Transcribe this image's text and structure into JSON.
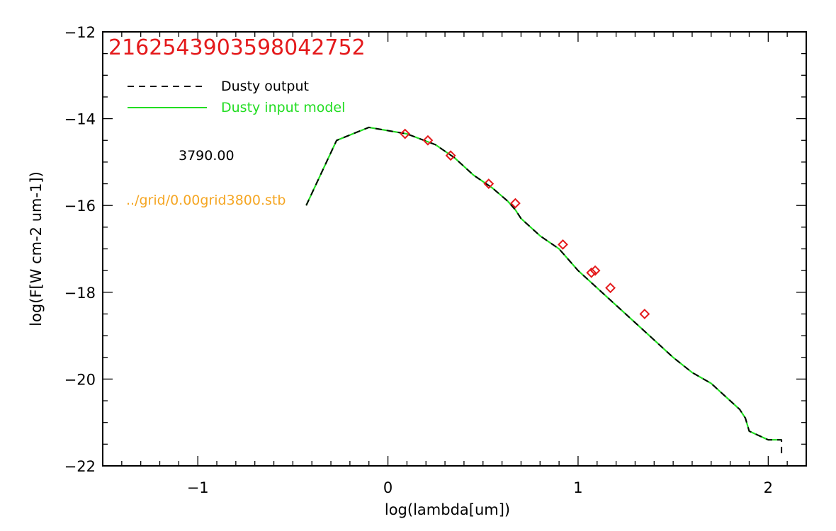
{
  "chart_data": {
    "type": "line",
    "title": "2162543903598042752",
    "title_color": "#e41a1c",
    "xlabel": "log(lambda[um])",
    "ylabel": "log(F[W cm-2 um-1])",
    "xlim": [
      -1.5,
      2.2
    ],
    "ylim": [
      -22,
      -12
    ],
    "xticks": [
      -1,
      0,
      1,
      2
    ],
    "xtick_labels": [
      "−1",
      "0",
      "1",
      "2"
    ],
    "yticks": [
      -12,
      -14,
      -16,
      -18,
      -20,
      -22
    ],
    "ytick_labels": [
      "−12",
      "−14",
      "−16",
      "−18",
      "−20",
      "−22"
    ],
    "annotations": [
      {
        "text": "3790.00",
        "color": "#000000"
      },
      {
        "text": "../grid/0.00grid3800.stb",
        "color": "#f5a623"
      }
    ],
    "legend": {
      "placement": "top-left",
      "entries": [
        {
          "label": "Dusty output",
          "color": "#000000",
          "style": "dashed"
        },
        {
          "label": "Dusty input model",
          "color": "#22dd22",
          "style": "solid"
        }
      ]
    },
    "series": [
      {
        "name": "Dusty input model",
        "color": "#22dd22",
        "style": "solid",
        "x": [
          -0.43,
          -0.27,
          -0.1,
          0.1,
          0.25,
          0.35,
          0.45,
          0.55,
          0.63,
          0.67,
          0.7,
          0.8,
          0.9,
          1.0,
          1.1,
          1.2,
          1.3,
          1.4,
          1.5,
          1.6,
          1.7,
          1.75,
          1.8,
          1.85,
          1.88,
          1.9,
          1.95,
          2.0,
          2.07
        ],
        "y": [
          -16.0,
          -14.5,
          -14.2,
          -14.35,
          -14.6,
          -14.9,
          -15.3,
          -15.6,
          -15.9,
          -16.1,
          -16.3,
          -16.7,
          -17.0,
          -17.5,
          -17.9,
          -18.3,
          -18.7,
          -19.1,
          -19.5,
          -19.85,
          -20.1,
          -20.3,
          -20.5,
          -20.7,
          -20.9,
          -21.2,
          -21.3,
          -21.4,
          -21.4
        ]
      },
      {
        "name": "Dusty output",
        "color": "#000000",
        "style": "dashed",
        "x": [
          -0.43,
          -0.27,
          -0.1,
          0.1,
          0.25,
          0.35,
          0.45,
          0.55,
          0.63,
          0.67,
          0.7,
          0.8,
          0.9,
          1.0,
          1.1,
          1.2,
          1.3,
          1.4,
          1.5,
          1.6,
          1.7,
          1.75,
          1.8,
          1.85,
          1.88,
          1.9,
          1.95,
          2.0,
          2.07,
          2.07
        ],
        "y": [
          -16.0,
          -14.5,
          -14.2,
          -14.35,
          -14.6,
          -14.9,
          -15.3,
          -15.6,
          -15.9,
          -16.1,
          -16.3,
          -16.7,
          -17.0,
          -17.5,
          -17.9,
          -18.3,
          -18.7,
          -19.1,
          -19.5,
          -19.85,
          -20.1,
          -20.3,
          -20.5,
          -20.7,
          -20.9,
          -21.2,
          -21.3,
          -21.4,
          -21.4,
          -21.8
        ]
      },
      {
        "name": "",
        "type": "scatter",
        "marker": "diamond",
        "color": "#e41a1c",
        "x": [
          0.09,
          0.21,
          0.33,
          0.53,
          0.67,
          0.92,
          1.07,
          1.09,
          1.17,
          1.35
        ],
        "y": [
          -14.35,
          -14.5,
          -14.85,
          -15.5,
          -15.95,
          -16.9,
          -17.55,
          -17.5,
          -17.9,
          -18.5
        ]
      }
    ]
  }
}
